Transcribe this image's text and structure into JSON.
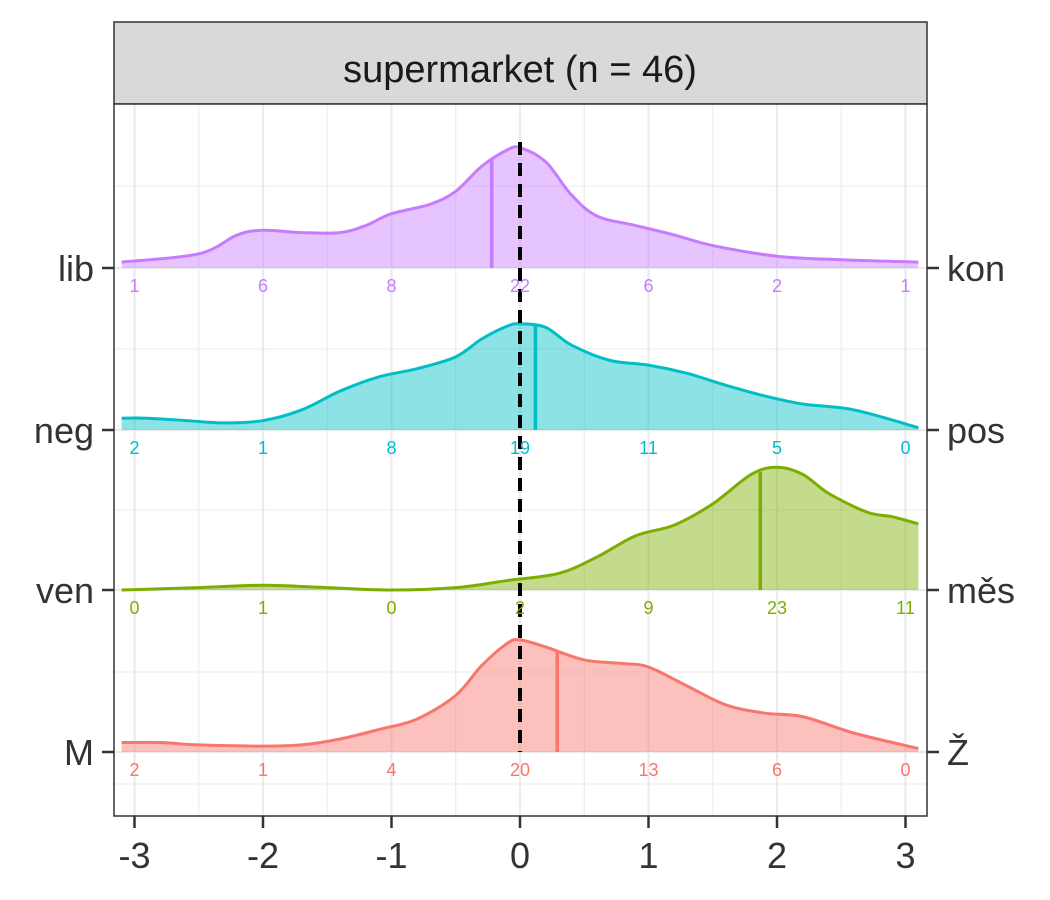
{
  "chart_data": {
    "type": "area",
    "chart_kind": "ridgeline density",
    "facet_title": "supermarket (n = 46)",
    "x_ticks": [
      "-3",
      "-2",
      "-1",
      "0",
      "1",
      "2",
      "3"
    ],
    "x_range": [
      -3.1,
      3.1
    ],
    "reference_line": 0,
    "grid": true,
    "rows": [
      {
        "left_label": "lib",
        "right_label": "kon",
        "color": "#C77CFF",
        "mean": -0.22,
        "counts": [
          1,
          6,
          8,
          22,
          6,
          2,
          1
        ],
        "density": [
          [
            -3.1,
            0.05
          ],
          [
            -2.5,
            0.12
          ],
          [
            -2.2,
            0.28
          ],
          [
            -2.0,
            0.32
          ],
          [
            -1.7,
            0.3
          ],
          [
            -1.4,
            0.3
          ],
          [
            -1.2,
            0.36
          ],
          [
            -1.0,
            0.46
          ],
          [
            -0.7,
            0.54
          ],
          [
            -0.5,
            0.65
          ],
          [
            -0.3,
            0.86
          ],
          [
            -0.1,
            1.0
          ],
          [
            0.0,
            1.02
          ],
          [
            0.2,
            0.9
          ],
          [
            0.4,
            0.62
          ],
          [
            0.6,
            0.44
          ],
          [
            0.9,
            0.36
          ],
          [
            1.2,
            0.28
          ],
          [
            1.5,
            0.19
          ],
          [
            2.0,
            0.1
          ],
          [
            2.5,
            0.07
          ],
          [
            3.1,
            0.05
          ]
        ]
      },
      {
        "left_label": "neg",
        "right_label": "pos",
        "color": "#00BFC4",
        "mean": 0.12,
        "counts": [
          2,
          1,
          8,
          19,
          11,
          5,
          0
        ],
        "density": [
          [
            -3.1,
            0.1
          ],
          [
            -2.9,
            0.1
          ],
          [
            -2.6,
            0.08
          ],
          [
            -2.3,
            0.06
          ],
          [
            -2.0,
            0.08
          ],
          [
            -1.7,
            0.17
          ],
          [
            -1.4,
            0.33
          ],
          [
            -1.1,
            0.45
          ],
          [
            -0.8,
            0.52
          ],
          [
            -0.5,
            0.62
          ],
          [
            -0.3,
            0.77
          ],
          [
            -0.1,
            0.88
          ],
          [
            0.0,
            0.9
          ],
          [
            0.2,
            0.87
          ],
          [
            0.4,
            0.72
          ],
          [
            0.7,
            0.59
          ],
          [
            1.0,
            0.55
          ],
          [
            1.3,
            0.48
          ],
          [
            1.6,
            0.38
          ],
          [
            1.9,
            0.29
          ],
          [
            2.2,
            0.22
          ],
          [
            2.6,
            0.17
          ],
          [
            3.1,
            0.02
          ]
        ]
      },
      {
        "left_label": "ven",
        "right_label": "měs",
        "color": "#7CAE00",
        "mean": 1.87,
        "counts": [
          0,
          1,
          0,
          2,
          9,
          23,
          11
        ],
        "density": [
          [
            -3.1,
            0.0
          ],
          [
            -2.5,
            0.02
          ],
          [
            -2.0,
            0.04
          ],
          [
            -1.5,
            0.02
          ],
          [
            -1.0,
            0.0
          ],
          [
            -0.5,
            0.02
          ],
          [
            -0.1,
            0.08
          ],
          [
            0.3,
            0.14
          ],
          [
            0.6,
            0.28
          ],
          [
            0.9,
            0.46
          ],
          [
            1.2,
            0.55
          ],
          [
            1.5,
            0.73
          ],
          [
            1.8,
            0.98
          ],
          [
            2.0,
            1.04
          ],
          [
            2.2,
            0.98
          ],
          [
            2.4,
            0.82
          ],
          [
            2.7,
            0.66
          ],
          [
            2.9,
            0.62
          ],
          [
            3.1,
            0.56
          ]
        ]
      },
      {
        "left_label": "M",
        "right_label": "Ž",
        "color": "#F8766D",
        "mean": 0.29,
        "counts": [
          2,
          1,
          4,
          20,
          13,
          6,
          0
        ],
        "density": [
          [
            -3.1,
            0.08
          ],
          [
            -2.8,
            0.08
          ],
          [
            -2.5,
            0.06
          ],
          [
            -2.0,
            0.05
          ],
          [
            -1.7,
            0.06
          ],
          [
            -1.4,
            0.11
          ],
          [
            -1.1,
            0.19
          ],
          [
            -0.8,
            0.28
          ],
          [
            -0.5,
            0.48
          ],
          [
            -0.3,
            0.73
          ],
          [
            -0.1,
            0.92
          ],
          [
            0.0,
            0.95
          ],
          [
            0.2,
            0.89
          ],
          [
            0.5,
            0.78
          ],
          [
            0.8,
            0.75
          ],
          [
            1.0,
            0.72
          ],
          [
            1.3,
            0.56
          ],
          [
            1.6,
            0.4
          ],
          [
            1.9,
            0.33
          ],
          [
            2.2,
            0.3
          ],
          [
            2.6,
            0.16
          ],
          [
            3.1,
            0.03
          ]
        ]
      }
    ]
  }
}
